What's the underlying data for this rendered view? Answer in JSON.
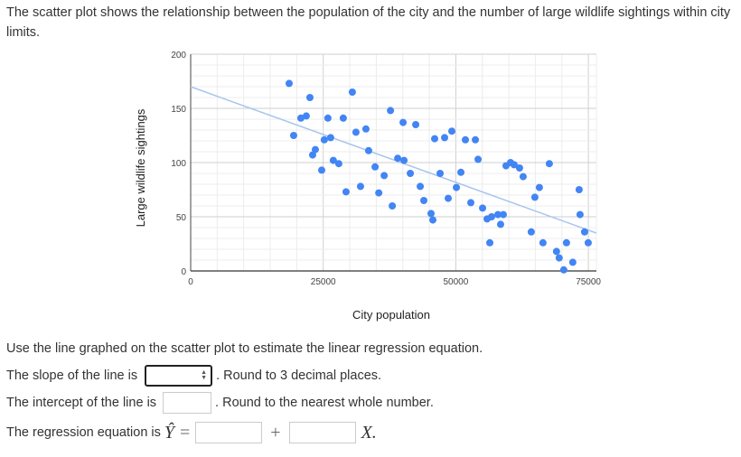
{
  "intro_text": "The scatter plot shows the relationship between the population of the city and the number of large wildlife sightings within city limits.",
  "chart_data": {
    "type": "scatter",
    "title": "",
    "xlabel": "City population",
    "ylabel": "Large wildlife sightings",
    "xlim": [
      0,
      77000
    ],
    "ylim": [
      0,
      200
    ],
    "x_ticks": [
      0,
      25000,
      50000,
      75000
    ],
    "y_ticks": [
      0,
      50,
      100,
      150,
      200
    ],
    "grid": true,
    "point_color": "#4285f4",
    "trendline": {
      "color": "#a8c4ee",
      "x": [
        0,
        76500
      ],
      "y": [
        170,
        35
      ]
    },
    "points": [
      [
        18570,
        173
      ],
      [
        22490,
        160
      ],
      [
        21800,
        143
      ],
      [
        20780,
        141
      ],
      [
        19420,
        125
      ],
      [
        25880,
        141
      ],
      [
        28780,
        141
      ],
      [
        30490,
        165
      ],
      [
        31170,
        128
      ],
      [
        33050,
        131
      ],
      [
        25200,
        121
      ],
      [
        26390,
        123
      ],
      [
        23510,
        112
      ],
      [
        23000,
        107
      ],
      [
        24710,
        93
      ],
      [
        26900,
        102
      ],
      [
        27930,
        99
      ],
      [
        33560,
        111
      ],
      [
        34780,
        96
      ],
      [
        36490,
        88
      ],
      [
        29300,
        73
      ],
      [
        32030,
        78
      ],
      [
        35470,
        72
      ],
      [
        38020,
        60
      ],
      [
        39040,
        104
      ],
      [
        40230,
        102
      ],
      [
        37680,
        148
      ],
      [
        40060,
        137
      ],
      [
        42440,
        135
      ],
      [
        49250,
        129
      ],
      [
        46010,
        122
      ],
      [
        47890,
        123
      ],
      [
        51810,
        121
      ],
      [
        53690,
        121
      ],
      [
        54200,
        103
      ],
      [
        41420,
        90
      ],
      [
        47040,
        90
      ],
      [
        50960,
        91
      ],
      [
        43290,
        78
      ],
      [
        50110,
        77
      ],
      [
        43970,
        65
      ],
      [
        48570,
        67
      ],
      [
        52830,
        63
      ],
      [
        45330,
        53
      ],
      [
        45670,
        47
      ],
      [
        55050,
        58
      ],
      [
        55900,
        48
      ],
      [
        59470,
        97
      ],
      [
        60320,
        100
      ],
      [
        61000,
        98
      ],
      [
        62020,
        95
      ],
      [
        62700,
        87
      ],
      [
        67640,
        99
      ],
      [
        65760,
        77
      ],
      [
        64910,
        68
      ],
      [
        73260,
        75
      ],
      [
        56750,
        50
      ],
      [
        57940,
        52
      ],
      [
        58960,
        52
      ],
      [
        58450,
        43
      ],
      [
        64230,
        36
      ],
      [
        56410,
        26
      ],
      [
        66440,
        26
      ],
      [
        70870,
        26
      ],
      [
        73430,
        52
      ],
      [
        74290,
        36
      ],
      [
        74970,
        26
      ],
      [
        68990,
        18
      ],
      [
        69500,
        12
      ],
      [
        72060,
        8
      ],
      [
        70360,
        1
      ]
    ]
  },
  "questions": {
    "instruction": "Use the line graphed on the scatter plot to estimate the linear regression equation.",
    "slope_label": "The slope of the line is",
    "slope_note": ". Round to 3 decimal places.",
    "slope_value": "",
    "intercept_label": "The intercept of the line is",
    "intercept_note": ". Round to the nearest whole number.",
    "intercept_value": "",
    "equation_label": "The regression equation is",
    "equation_yhat": "Ŷ",
    "equals": "=",
    "plus": "+",
    "x_var": "X.",
    "eq_intercept_value": "",
    "eq_slope_value": ""
  }
}
